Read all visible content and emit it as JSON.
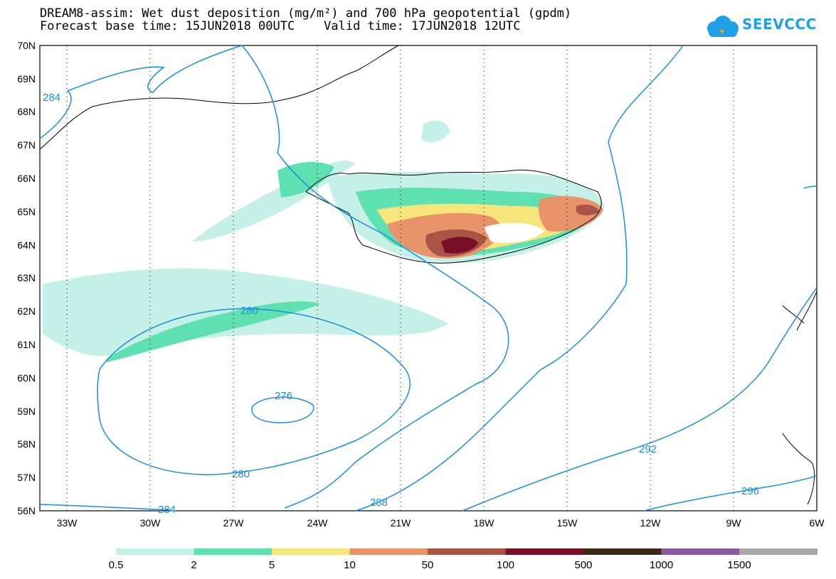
{
  "header": {
    "title_line1": "DREAM8-assim: Wet dust deposition (mg/m²) and 700 hPa geopotential (gpdm)",
    "title_line2": "Forecast base time: 15JUN2018 00UTC    Valid time: 17JUN2018 12UTC",
    "logo_text": "SEEVCCC",
    "logo_icon": "cloud-icon"
  },
  "map": {
    "lat_labels": [
      "56N",
      "57N",
      "58N",
      "59N",
      "60N",
      "61N",
      "62N",
      "63N",
      "64N",
      "65N",
      "66N",
      "67N",
      "68N",
      "69N",
      "70N"
    ],
    "lon_labels": [
      "33W",
      "30W",
      "27W",
      "24W",
      "21W",
      "18W",
      "15W",
      "12W",
      "9W",
      "6W"
    ],
    "contour_labels": [
      "284",
      "280",
      "276",
      "280",
      "284",
      "288",
      "292",
      "296"
    ],
    "contour_color": "#1a8fe0",
    "grid": "dotted"
  },
  "legend": {
    "colors": [
      "#c4f0e8",
      "#5ee0b0",
      "#f5e57a",
      "#e8936a",
      "#a85545",
      "#7a0f2a",
      "#3a2a1a",
      "#8a5aa0",
      "#a8a8a8"
    ],
    "labels": [
      "0.5",
      "2",
      "5",
      "10",
      "50",
      "100",
      "500",
      "1000",
      "1500"
    ]
  }
}
